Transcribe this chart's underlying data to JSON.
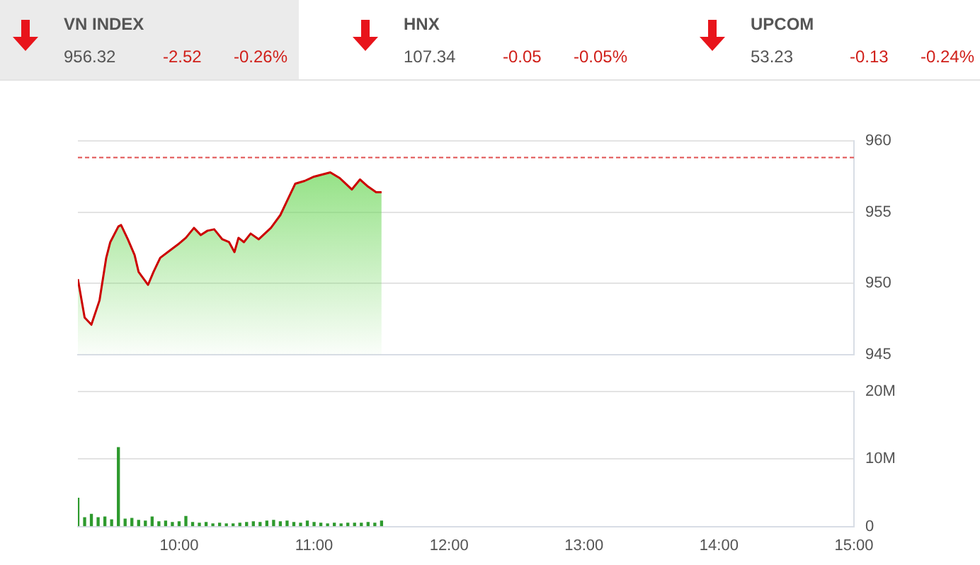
{
  "chart_data": [
    {
      "type": "other",
      "annotations": [
        "VN INDEX",
        "956.32",
        "-2.52",
        "-0.26%",
        "HNX",
        "107.34",
        "-0.05",
        "-0.05%",
        "UPCOM",
        "53.23",
        "-0.13",
        "-0.24%"
      ]
    },
    {
      "type": "area",
      "tick_labels": "y",
      "grid": "y",
      "xlim": [
        9.25,
        15
      ],
      "ylim": [
        945,
        960
      ],
      "yticks": [
        945,
        950,
        955,
        960
      ],
      "x": [
        9.25,
        9.3,
        9.35,
        9.41,
        9.46,
        9.49,
        9.55,
        9.57,
        9.62,
        9.67,
        9.7,
        9.77,
        9.81,
        9.86,
        9.93,
        10.0,
        10.05,
        10.11,
        10.16,
        10.21,
        10.26,
        10.32,
        10.37,
        10.41,
        10.44,
        10.48,
        10.53,
        10.59,
        10.68,
        10.75,
        10.8,
        10.86,
        10.93,
        11.0,
        11.12,
        11.19,
        11.28,
        11.34,
        11.4,
        11.46,
        11.5
      ],
      "series": [
        {
          "color": "#cc0000",
          "values": [
            950.3,
            947.6,
            947.1,
            948.8,
            951.8,
            952.9,
            954.0,
            954.1,
            953.1,
            952.0,
            950.8,
            949.9,
            950.8,
            951.8,
            952.3,
            952.8,
            953.2,
            953.9,
            953.4,
            953.7,
            953.8,
            953.1,
            952.9,
            952.2,
            953.2,
            952.9,
            953.5,
            953.1,
            953.9,
            954.8,
            955.8,
            957.0,
            957.2,
            957.5,
            957.8,
            957.4,
            956.6,
            957.3,
            956.8,
            956.4,
            956.4
          ]
        }
      ],
      "ref_lines": [
        {
          "axis": "y",
          "value": 958.84,
          "color": "#e05050",
          "line_style": "dashed"
        }
      ]
    },
    {
      "type": "bar",
      "grid": "y",
      "xlim": [
        9.25,
        15
      ],
      "xticks": [
        {
          "value": 10,
          "label": "10:00"
        },
        {
          "value": 11,
          "label": "11:00"
        },
        {
          "value": 12,
          "label": "12:00"
        },
        {
          "value": 13,
          "label": "13:00"
        },
        {
          "value": 14,
          "label": "14:00"
        },
        {
          "value": 15,
          "label": "15:00"
        }
      ],
      "ylim": [
        0,
        20000000
      ],
      "yticks": [
        0,
        {
          "value": 10000000,
          "label": "10M"
        },
        {
          "value": 20000000,
          "label": "20M"
        }
      ],
      "x": [
        9.25,
        9.3,
        9.35,
        9.4,
        9.45,
        9.5,
        9.55,
        9.6,
        9.65,
        9.7,
        9.75,
        9.8,
        9.85,
        9.9,
        9.95,
        10.0,
        10.05,
        10.1,
        10.15,
        10.2,
        10.25,
        10.3,
        10.35,
        10.4,
        10.45,
        10.5,
        10.55,
        10.6,
        10.65,
        10.7,
        10.75,
        10.8,
        10.85,
        10.9,
        10.95,
        11.0,
        11.05,
        11.1,
        11.15,
        11.2,
        11.25,
        11.3,
        11.35,
        11.4,
        11.45,
        11.5
      ],
      "series": [
        {
          "color": "#2e9a2e",
          "values": [
            4200000,
            1300000,
            1800000,
            1300000,
            1400000,
            1000000,
            11700000,
            1100000,
            1200000,
            900000,
            800000,
            1400000,
            700000,
            800000,
            600000,
            700000,
            1500000,
            600000,
            500000,
            600000,
            400000,
            500000,
            400000,
            400000,
            500000,
            600000,
            700000,
            600000,
            800000,
            900000,
            700000,
            800000,
            600000,
            500000,
            800000,
            600000,
            500000,
            400000,
            500000,
            400000,
            500000,
            500000,
            500000,
            600000,
            500000,
            800000
          ]
        }
      ]
    }
  ]
}
